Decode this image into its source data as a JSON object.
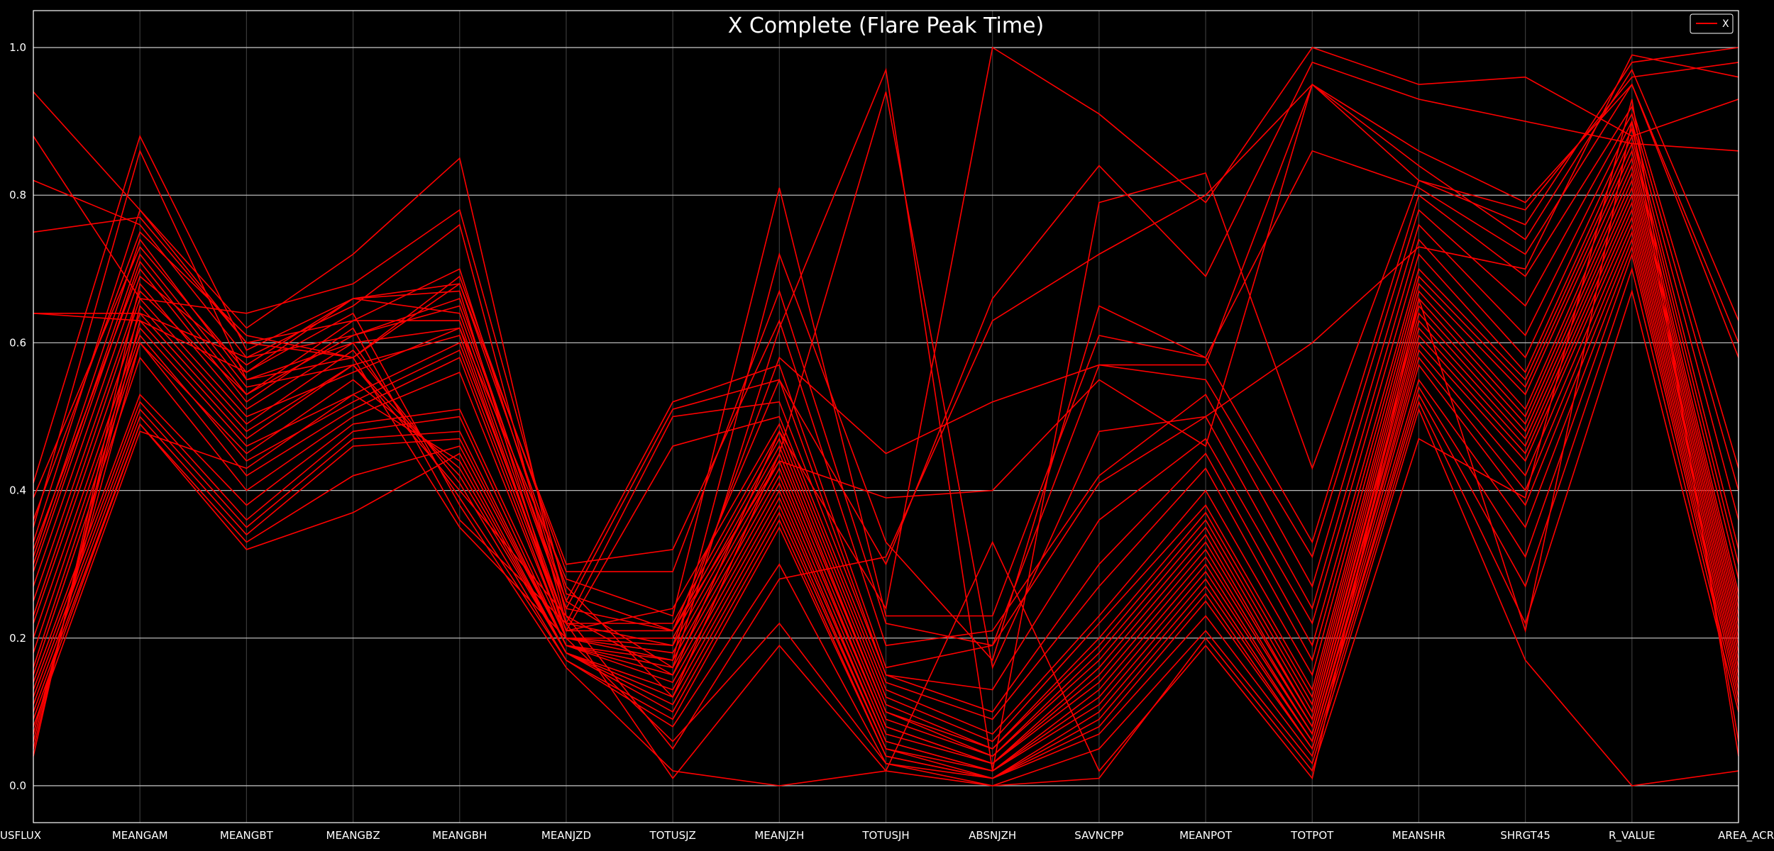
{
  "chart_data": {
    "type": "line",
    "subtype": "parallel-coordinates",
    "title": "X Complete (Flare Peak Time)",
    "xlabel": "",
    "ylabel": "",
    "categories": [
      "USFLUX",
      "MEANGAM",
      "MEANGBT",
      "MEANGBZ",
      "MEANGBH",
      "MEANJZD",
      "TOTUSJZ",
      "MEANJZH",
      "TOTUSJH",
      "ABSNJZH",
      "SAVNCPP",
      "MEANPOT",
      "TOTPOT",
      "MEANSHR",
      "SHRGT45",
      "R_VALUE",
      "AREA_ACR"
    ],
    "ylim": [
      -0.05,
      1.05
    ],
    "yticks": [
      "0.0",
      "0.2",
      "0.4",
      "0.6",
      "0.8",
      "1.0"
    ],
    "grid": true,
    "legend_position": "top-right",
    "background_color": "#000000",
    "text_color": "#ffffff",
    "series_color": "#ff0000",
    "series": [
      {
        "name": "X",
        "values": [
          0.94,
          0.78,
          0.62,
          0.72,
          0.85,
          0.23,
          0.15,
          0.48,
          0.24,
          1.0,
          0.91,
          0.79,
          1.0,
          0.95,
          0.96,
          0.88,
          0.93
        ]
      },
      {
        "name": "X",
        "values": [
          0.88,
          0.66,
          0.64,
          0.68,
          0.78,
          0.26,
          0.21,
          0.55,
          0.3,
          0.66,
          0.84,
          0.69,
          0.98,
          0.93,
          0.9,
          0.87,
          0.86
        ]
      },
      {
        "name": "X",
        "values": [
          0.82,
          0.76,
          0.58,
          0.65,
          0.76,
          0.22,
          0.19,
          0.58,
          0.45,
          0.52,
          0.57,
          0.57,
          0.95,
          0.82,
          0.78,
          0.96,
          0.98
        ]
      },
      {
        "name": "X",
        "values": [
          0.75,
          0.77,
          0.6,
          0.63,
          0.7,
          0.25,
          0.16,
          0.62,
          0.97,
          0.02,
          0.79,
          0.83,
          0.43,
          0.82,
          0.76,
          0.98,
          1.0
        ]
      },
      {
        "name": "X",
        "values": [
          0.64,
          0.63,
          0.56,
          0.66,
          0.68,
          0.27,
          0.12,
          0.45,
          0.94,
          0.16,
          0.48,
          0.5,
          0.6,
          0.73,
          0.7,
          0.99,
          0.96
        ]
      },
      {
        "name": "X",
        "values": [
          0.64,
          0.64,
          0.58,
          0.61,
          0.66,
          0.24,
          0.21,
          0.44,
          0.39,
          0.4,
          0.55,
          0.46,
          0.95,
          0.84,
          0.74,
          0.97,
          0.63
        ]
      },
      {
        "name": "X",
        "values": [
          0.41,
          0.88,
          0.59,
          0.66,
          0.67,
          0.2,
          0.17,
          0.72,
          0.33,
          0.17,
          0.65,
          0.58,
          0.86,
          0.81,
          0.72,
          0.95,
          0.6
        ]
      },
      {
        "name": "X",
        "values": [
          0.35,
          0.86,
          0.55,
          0.6,
          0.62,
          0.28,
          0.23,
          0.81,
          0.23,
          0.23,
          0.61,
          0.58,
          0.33,
          0.8,
          0.69,
          0.92,
          0.43
        ]
      },
      {
        "name": "X",
        "values": [
          0.33,
          0.78,
          0.6,
          0.58,
          0.69,
          0.29,
          0.29,
          0.67,
          0.22,
          0.19,
          0.57,
          0.55,
          0.31,
          0.78,
          0.65,
          0.91,
          0.4
        ]
      },
      {
        "name": "X",
        "values": [
          0.31,
          0.74,
          0.55,
          0.58,
          0.68,
          0.3,
          0.32,
          0.63,
          0.19,
          0.21,
          0.42,
          0.53,
          0.27,
          0.76,
          0.61,
          0.9,
          0.36
        ]
      },
      {
        "name": "X",
        "values": [
          0.29,
          0.71,
          0.53,
          0.61,
          0.65,
          0.25,
          0.52,
          0.57,
          0.16,
          0.19,
          0.41,
          0.5,
          0.24,
          0.74,
          0.58,
          0.89,
          0.32
        ]
      },
      {
        "name": "X",
        "values": [
          0.27,
          0.69,
          0.57,
          0.66,
          0.64,
          0.24,
          0.51,
          0.55,
          0.15,
          0.13,
          0.36,
          0.47,
          0.22,
          0.72,
          0.56,
          0.88,
          0.3
        ]
      },
      {
        "name": "X",
        "values": [
          0.25,
          0.67,
          0.53,
          0.63,
          0.63,
          0.22,
          0.5,
          0.52,
          0.15,
          0.1,
          0.3,
          0.45,
          0.19,
          0.7,
          0.55,
          0.87,
          0.28
        ]
      },
      {
        "name": "X",
        "values": [
          0.23,
          0.66,
          0.5,
          0.56,
          0.62,
          0.21,
          0.46,
          0.5,
          0.14,
          0.09,
          0.27,
          0.43,
          0.17,
          0.69,
          0.54,
          0.86,
          0.26
        ]
      },
      {
        "name": "X",
        "values": [
          0.22,
          0.64,
          0.48,
          0.57,
          0.61,
          0.21,
          0.24,
          0.49,
          0.13,
          0.07,
          0.23,
          0.4,
          0.15,
          0.68,
          0.53,
          0.85,
          0.25
        ]
      },
      {
        "name": "X",
        "values": [
          0.2,
          0.62,
          0.46,
          0.53,
          0.6,
          0.22,
          0.22,
          0.48,
          0.12,
          0.06,
          0.22,
          0.38,
          0.13,
          0.67,
          0.51,
          0.84,
          0.24
        ]
      },
      {
        "name": "X",
        "values": [
          0.18,
          0.61,
          0.44,
          0.52,
          0.59,
          0.21,
          0.21,
          0.47,
          0.11,
          0.05,
          0.2,
          0.37,
          0.12,
          0.66,
          0.5,
          0.83,
          0.23
        ]
      },
      {
        "name": "X",
        "values": [
          0.16,
          0.6,
          0.42,
          0.51,
          0.58,
          0.2,
          0.2,
          0.46,
          0.1,
          0.05,
          0.19,
          0.36,
          0.11,
          0.65,
          0.49,
          0.82,
          0.22
        ]
      },
      {
        "name": "X",
        "values": [
          0.15,
          0.58,
          0.4,
          0.5,
          0.56,
          0.2,
          0.19,
          0.45,
          0.1,
          0.04,
          0.18,
          0.35,
          0.1,
          0.64,
          0.48,
          0.81,
          0.21
        ]
      },
      {
        "name": "X",
        "values": [
          0.14,
          0.53,
          0.38,
          0.49,
          0.51,
          0.2,
          0.18,
          0.44,
          0.09,
          0.04,
          0.17,
          0.34,
          0.09,
          0.63,
          0.47,
          0.8,
          0.2
        ]
      },
      {
        "name": "X",
        "values": [
          0.13,
          0.52,
          0.36,
          0.48,
          0.5,
          0.19,
          0.17,
          0.43,
          0.08,
          0.03,
          0.16,
          0.33,
          0.09,
          0.62,
          0.46,
          0.79,
          0.19
        ]
      },
      {
        "name": "X",
        "values": [
          0.12,
          0.51,
          0.35,
          0.47,
          0.48,
          0.19,
          0.16,
          0.42,
          0.08,
          0.03,
          0.15,
          0.32,
          0.08,
          0.61,
          0.45,
          0.78,
          0.18
        ]
      },
      {
        "name": "X",
        "values": [
          0.11,
          0.5,
          0.34,
          0.46,
          0.47,
          0.19,
          0.15,
          0.41,
          0.07,
          0.03,
          0.14,
          0.31,
          0.08,
          0.6,
          0.44,
          0.77,
          0.17
        ]
      },
      {
        "name": "X",
        "values": [
          0.1,
          0.49,
          0.33,
          0.42,
          0.46,
          0.19,
          0.14,
          0.4,
          0.06,
          0.02,
          0.13,
          0.3,
          0.07,
          0.59,
          0.42,
          0.76,
          0.16
        ]
      },
      {
        "name": "X",
        "values": [
          0.09,
          0.49,
          0.32,
          0.37,
          0.45,
          0.18,
          0.13,
          0.39,
          0.06,
          0.02,
          0.12,
          0.29,
          0.07,
          0.58,
          0.4,
          0.75,
          0.15
        ]
      },
      {
        "name": "X",
        "values": [
          0.08,
          0.48,
          0.43,
          0.53,
          0.44,
          0.18,
          0.12,
          0.38,
          0.05,
          0.02,
          0.11,
          0.28,
          0.06,
          0.57,
          0.38,
          0.74,
          0.14
        ]
      },
      {
        "name": "X",
        "values": [
          0.07,
          0.6,
          0.45,
          0.55,
          0.43,
          0.18,
          0.11,
          0.37,
          0.05,
          0.01,
          0.1,
          0.27,
          0.06,
          0.55,
          0.35,
          0.73,
          0.13
        ]
      },
      {
        "name": "X",
        "values": [
          0.06,
          0.63,
          0.47,
          0.57,
          0.42,
          0.18,
          0.1,
          0.36,
          0.04,
          0.01,
          0.09,
          0.26,
          0.05,
          0.54,
          0.31,
          0.72,
          0.12
        ]
      },
      {
        "name": "X",
        "values": [
          0.05,
          0.65,
          0.49,
          0.59,
          0.41,
          0.17,
          0.09,
          0.35,
          0.04,
          0.01,
          0.08,
          0.25,
          0.05,
          0.53,
          0.27,
          0.7,
          0.11
        ]
      },
      {
        "name": "X",
        "values": [
          0.04,
          0.68,
          0.51,
          0.6,
          0.39,
          0.17,
          0.08,
          0.3,
          0.03,
          0.01,
          0.07,
          0.23,
          0.04,
          0.52,
          0.22,
          0.67,
          0.1
        ]
      },
      {
        "name": "X",
        "values": [
          0.36,
          0.75,
          0.61,
          0.58,
          0.35,
          0.2,
          0.06,
          0.22,
          0.03,
          0.0,
          0.05,
          0.21,
          0.03,
          0.51,
          0.17,
          0.0,
          0.02
        ]
      },
      {
        "name": "X",
        "values": [
          0.39,
          0.73,
          0.56,
          0.64,
          0.38,
          0.16,
          0.02,
          0.0,
          0.02,
          0.0,
          0.01,
          0.2,
          0.02,
          0.47,
          0.39,
          0.93,
          0.04
        ]
      },
      {
        "name": "X",
        "values": [
          0.32,
          0.7,
          0.52,
          0.62,
          0.36,
          0.22,
          0.01,
          0.19,
          0.02,
          0.33,
          0.02,
          0.19,
          0.01,
          0.66,
          0.21,
          0.9,
          0.06
        ]
      },
      {
        "name": "X",
        "values": [
          0.3,
          0.72,
          0.54,
          0.57,
          0.4,
          0.23,
          0.05,
          0.28,
          0.31,
          0.63,
          0.72,
          0.8,
          0.95,
          0.86,
          0.79,
          0.95,
          0.58
        ]
      }
    ]
  }
}
